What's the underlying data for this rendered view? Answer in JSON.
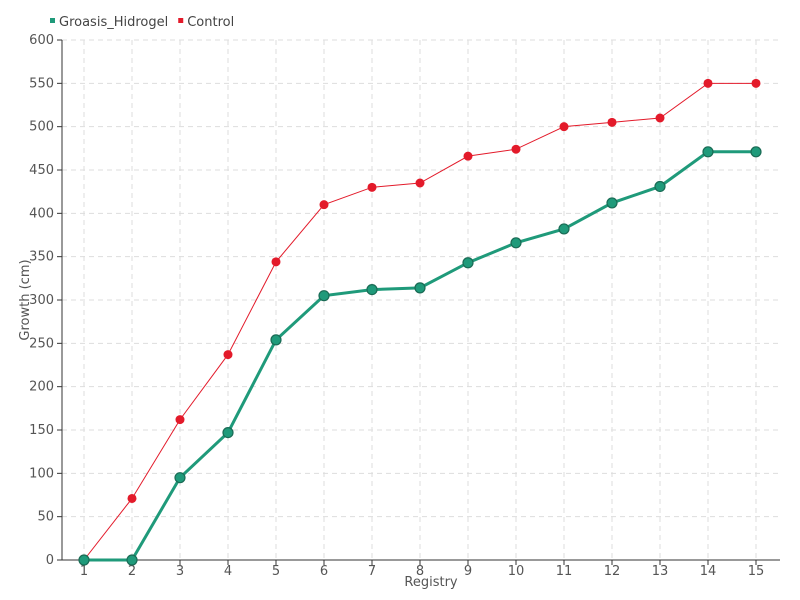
{
  "chart_data": {
    "type": "line",
    "title": "",
    "xlabel": "Registry",
    "ylabel": "Growth (cm)",
    "categories": [
      "1",
      "2",
      "3",
      "4",
      "5",
      "6",
      "7",
      "8",
      "9",
      "10",
      "11",
      "12",
      "13",
      "14",
      "15"
    ],
    "ylim": [
      0,
      600
    ],
    "yticks": [
      0,
      50,
      100,
      150,
      200,
      250,
      300,
      350,
      400,
      450,
      500,
      550,
      600
    ],
    "grid": true,
    "legend_position": "top-left",
    "series": [
      {
        "name": "Groasis_Hidrogel",
        "color": "#1f9a7a",
        "values": [
          0,
          0,
          95,
          147,
          254,
          305,
          312,
          314,
          343,
          366,
          382,
          412,
          431,
          471,
          471
        ]
      },
      {
        "name": "Control",
        "color": "#e31a2a",
        "values": [
          0,
          71,
          162,
          237,
          344,
          410,
          430,
          435,
          466,
          474,
          500,
          505,
          510,
          550,
          550
        ]
      }
    ]
  }
}
